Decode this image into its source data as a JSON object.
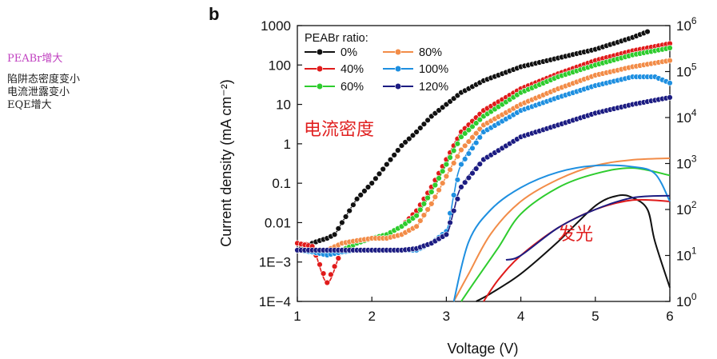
{
  "notes": {
    "line1": "PEABr增大",
    "line2": "陷阱态密度变小",
    "line3": "电流泄露变小",
    "line4": "EQE增大"
  },
  "chart_data": {
    "type": "line",
    "panel_label": "b",
    "xlabel": "Voltage (V)",
    "ylabel_left": "Current density (mA cm⁻²)",
    "xlim": [
      1,
      6
    ],
    "ylim_left": [
      0.0001,
      1000
    ],
    "ylim_right": [
      1,
      1000000
    ],
    "log_scale_left": true,
    "log_scale_right": true,
    "x_ticks": [
      "1",
      "2",
      "3",
      "4",
      "5",
      "6"
    ],
    "y_ticks_left": [
      "1000",
      "100",
      "10",
      "1",
      "0.1",
      "0.01",
      "1E−3",
      "1E−4"
    ],
    "y_ticks_right": [
      "10",
      "10",
      "10",
      "10",
      "10",
      "10",
      "10"
    ],
    "y_ticks_right_exp": [
      "6",
      "5",
      "4",
      "3",
      "2",
      "1",
      "0"
    ],
    "legend_title": "PEABr ratio:",
    "legend_placement": "top-left",
    "annotations": [
      "电流密度",
      "发光"
    ],
    "series_current": [
      {
        "name": "0%",
        "color": "#111111",
        "x": [
          1.0,
          1.1,
          1.2,
          1.3,
          1.4,
          1.5,
          1.6,
          1.8,
          2.0,
          2.2,
          2.4,
          2.6,
          2.8,
          3.0,
          3.2,
          3.5,
          4.0,
          4.5,
          5.0,
          5.5,
          5.7
        ],
        "y": [
          0.002,
          0.0025,
          0.003,
          0.0035,
          0.004,
          0.005,
          0.01,
          0.04,
          0.1,
          0.3,
          0.9,
          2,
          5,
          10,
          20,
          40,
          90,
          150,
          250,
          500,
          700
        ]
      },
      {
        "name": "40%",
        "color": "#e01b1b",
        "x": [
          1.0,
          1.2,
          1.4,
          1.6,
          1.8,
          2.0,
          2.2,
          2.4,
          2.6,
          2.8,
          3.0,
          3.2,
          3.5,
          4.0,
          4.5,
          5.0,
          5.5,
          6.0
        ],
        "y": [
          0.003,
          0.0025,
          0.0003,
          0.002,
          0.003,
          0.004,
          0.005,
          0.008,
          0.02,
          0.08,
          0.4,
          2,
          7,
          25,
          60,
          130,
          230,
          350
        ]
      },
      {
        "name": "60%",
        "color": "#2ecc2e",
        "x": [
          1.0,
          1.2,
          1.4,
          1.6,
          1.8,
          2.0,
          2.2,
          2.4,
          2.6,
          2.8,
          3.0,
          3.2,
          3.5,
          4.0,
          4.5,
          5.0,
          5.5,
          6.0
        ],
        "y": [
          0.002,
          0.002,
          0.0015,
          0.002,
          0.003,
          0.004,
          0.005,
          0.008,
          0.015,
          0.06,
          0.3,
          1.5,
          5,
          20,
          50,
          100,
          180,
          270
        ]
      },
      {
        "name": "80%",
        "color": "#f28c48",
        "x": [
          1.0,
          1.2,
          1.4,
          1.6,
          1.8,
          2.0,
          2.2,
          2.4,
          2.6,
          2.8,
          3.0,
          3.2,
          3.5,
          4.0,
          4.5,
          5.0,
          5.5,
          6.0
        ],
        "y": [
          0.002,
          0.002,
          0.002,
          0.003,
          0.0035,
          0.004,
          0.004,
          0.005,
          0.008,
          0.03,
          0.15,
          0.7,
          3,
          10,
          25,
          55,
          90,
          130
        ]
      },
      {
        "name": "100%",
        "color": "#1e8fe0",
        "x": [
          1.0,
          1.2,
          1.4,
          1.6,
          1.8,
          2.0,
          2.2,
          2.4,
          2.6,
          2.8,
          3.0,
          3.1,
          3.2,
          3.5,
          4.0,
          4.5,
          5.0,
          5.5,
          5.8,
          6.0
        ],
        "y": [
          0.002,
          0.0018,
          0.0015,
          0.0018,
          0.002,
          0.002,
          0.002,
          0.002,
          0.002,
          0.003,
          0.006,
          0.05,
          0.3,
          2,
          7,
          15,
          30,
          50,
          50,
          35
        ]
      },
      {
        "name": "120%",
        "color": "#1c1c82",
        "x": [
          1.0,
          1.2,
          1.4,
          1.6,
          1.8,
          2.0,
          2.2,
          2.4,
          2.6,
          2.8,
          3.0,
          3.1,
          3.2,
          3.5,
          4.0,
          4.5,
          5.0,
          5.5,
          6.0
        ],
        "y": [
          0.002,
          0.002,
          0.002,
          0.002,
          0.002,
          0.002,
          0.002,
          0.002,
          0.0022,
          0.003,
          0.005,
          0.02,
          0.08,
          0.4,
          1.5,
          3,
          6,
          10,
          15
        ]
      }
    ],
    "series_luminance": [
      {
        "name": "0%",
        "color": "#111111",
        "x": [
          3.4,
          3.6,
          4.0,
          4.5,
          5.0,
          5.3,
          5.5,
          5.7,
          5.8,
          6.0
        ],
        "y": [
          1,
          1.5,
          4,
          20,
          120,
          200,
          180,
          100,
          20,
          2
        ]
      },
      {
        "name": "40%",
        "color": "#e01b1b",
        "x": [
          3.5,
          3.7,
          4.0,
          4.5,
          5.0,
          5.5,
          6.0
        ],
        "y": [
          1,
          3,
          10,
          40,
          100,
          160,
          150
        ]
      },
      {
        "name": "60%",
        "color": "#2ecc2e",
        "x": [
          3.2,
          3.4,
          3.7,
          4.0,
          4.5,
          5.0,
          5.5,
          6.0
        ],
        "y": [
          1,
          3,
          15,
          80,
          300,
          600,
          800,
          550
        ]
      },
      {
        "name": "80%",
        "color": "#f28c48",
        "x": [
          3.1,
          3.3,
          3.6,
          4.0,
          4.5,
          5.0,
          5.5,
          6.0
        ],
        "y": [
          1,
          4,
          30,
          150,
          450,
          900,
          1200,
          1300
        ]
      },
      {
        "name": "100%",
        "color": "#1e8fe0",
        "x": [
          3.1,
          3.3,
          3.6,
          4.0,
          4.5,
          5.0,
          5.5,
          5.8,
          6.0
        ],
        "y": [
          1,
          20,
          100,
          300,
          650,
          900,
          850,
          600,
          150
        ]
      },
      {
        "name": "120%",
        "color": "#1c1c82",
        "x": [
          3.8,
          4.0,
          4.5,
          5.0,
          5.5,
          6.0
        ],
        "y": [
          8,
          10,
          40,
          100,
          180,
          200
        ]
      }
    ]
  }
}
